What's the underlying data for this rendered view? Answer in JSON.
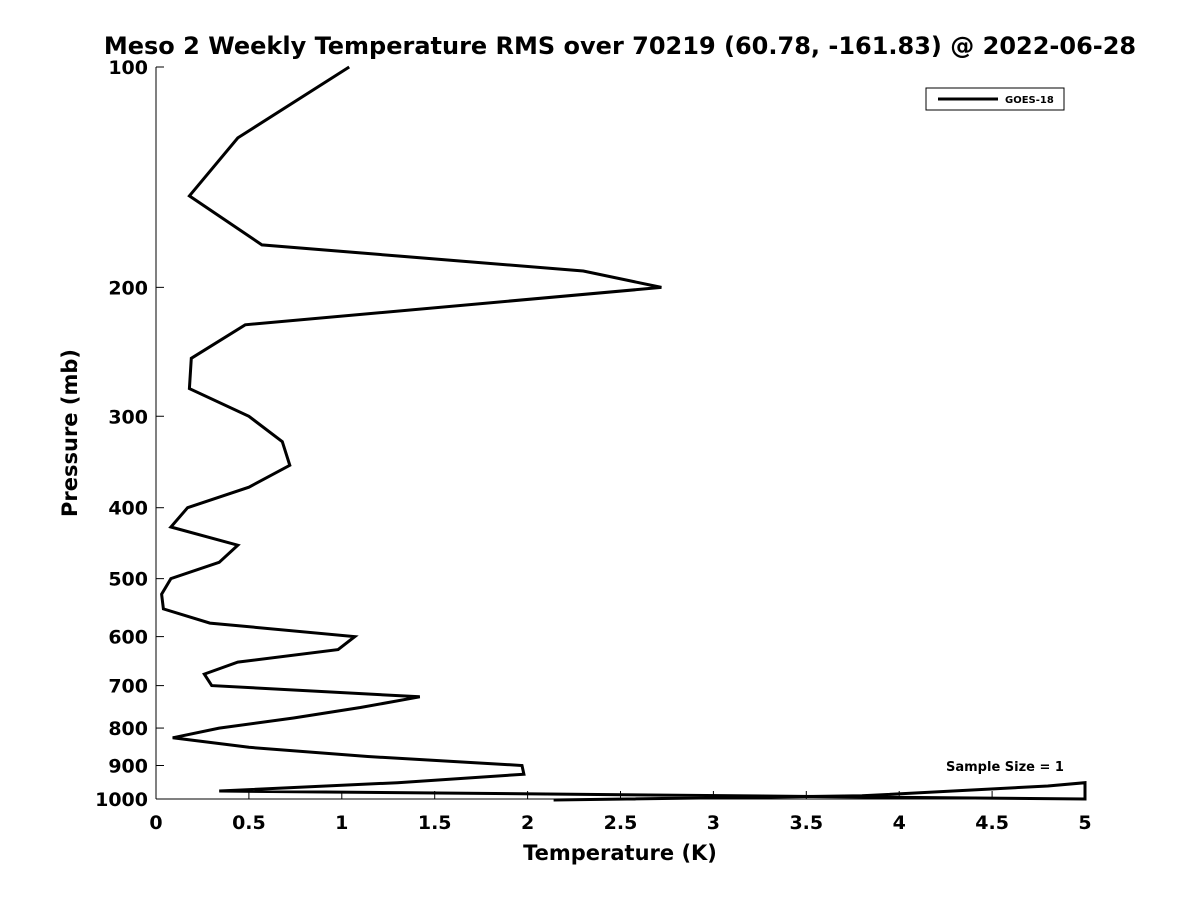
{
  "chart_data": {
    "type": "line",
    "title": "Meso 2 Weekly Temperature RMS over 70219 (60.78, -161.83) @ 2022-06-28",
    "xlabel": "Temperature (K)",
    "ylabel": "Pressure (mb)",
    "xlim": [
      0,
      5
    ],
    "ylim": [
      100,
      1000
    ],
    "y_scale": "log",
    "y_reversed": true,
    "x_ticks": [
      "0",
      "0.5",
      "1",
      "1.5",
      "2",
      "2.5",
      "3",
      "3.5",
      "4",
      "4.5",
      "5"
    ],
    "y_ticks": [
      "100",
      "200",
      "300",
      "400",
      "500",
      "600",
      "700",
      "800",
      "900",
      "1000"
    ],
    "grid": false,
    "legend_position": "top-right",
    "series": [
      {
        "name": "GOES-18",
        "color": "#000000",
        "x": [
          1.04,
          0.44,
          0.18,
          0.57,
          2.3,
          2.72,
          0.48,
          0.19,
          0.18,
          0.5,
          0.68,
          0.72,
          0.5,
          0.17,
          0.08,
          0.44,
          0.34,
          0.08,
          0.03,
          0.04,
          0.29,
          1.07,
          0.98,
          0.44,
          0.26,
          0.3,
          1.42,
          1.1,
          0.74,
          0.34,
          0.09,
          0.5,
          1.14,
          1.97,
          1.98,
          1.3,
          0.34,
          5.0,
          5.0,
          4.8,
          3.8,
          2.14
        ],
        "y": [
          100,
          125,
          150,
          175,
          190,
          200,
          225,
          250,
          275,
          300,
          325,
          350,
          375,
          400,
          425,
          450,
          475,
          500,
          525,
          550,
          575,
          600,
          625,
          650,
          675,
          700,
          725,
          750,
          775,
          800,
          825,
          850,
          875,
          900,
          925,
          950,
          975,
          1000,
          950,
          960,
          990,
          1005
        ]
      }
    ],
    "annotation": "Sample Size = 1"
  }
}
